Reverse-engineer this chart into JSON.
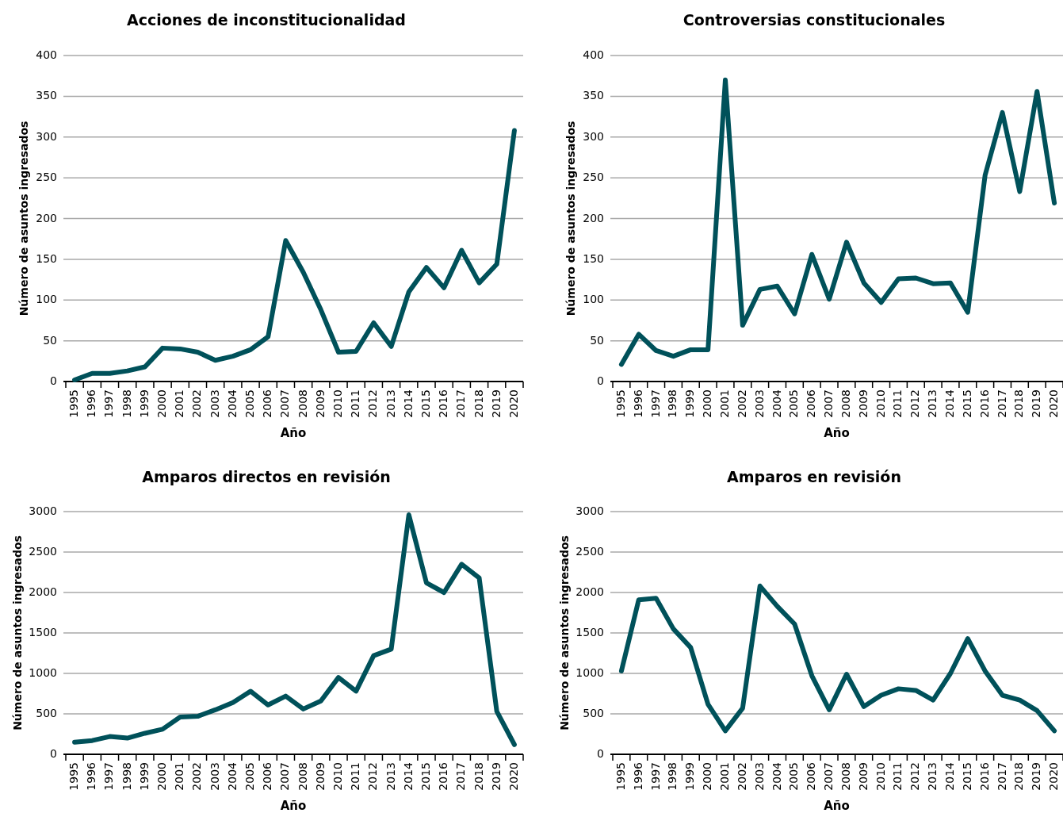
{
  "chart_data": [
    {
      "type": "line",
      "title": "Acciones de inconstitucionalidad",
      "xlabel": "Año",
      "ylabel": "Número de asuntos ingresados",
      "categories": [
        "1995",
        "1996",
        "1997",
        "1998",
        "1999",
        "2000",
        "2001",
        "2002",
        "2003",
        "2004",
        "2005",
        "2006",
        "2007",
        "2008",
        "2009",
        "2010",
        "2011",
        "2012",
        "2013",
        "2014",
        "2015",
        "2016",
        "2017",
        "2018",
        "2019",
        "2020"
      ],
      "series": [
        {
          "color": "#00515a",
          "values": [
            2,
            10,
            10,
            13,
            18,
            41,
            40,
            36,
            26,
            31,
            39,
            55,
            173,
            134,
            88,
            36,
            37,
            72,
            43,
            110,
            140,
            115,
            161,
            121,
            144,
            308
          ]
        }
      ],
      "ylim": [
        0,
        400
      ],
      "yticks": [
        0,
        50,
        100,
        150,
        200,
        250,
        300,
        350,
        400
      ],
      "grid": "y",
      "marker": "none",
      "line_style": "solid"
    },
    {
      "type": "line",
      "title": "Controversias constitucionales",
      "xlabel": "Año",
      "ylabel": "Número de asuntos ingresados",
      "categories": [
        "1995",
        "1996",
        "1997",
        "1998",
        "1999",
        "2000",
        "2001",
        "2002",
        "2003",
        "2004",
        "2005",
        "2006",
        "2007",
        "2008",
        "2009",
        "2010",
        "2011",
        "2012",
        "2013",
        "2014",
        "2015",
        "2016",
        "2017",
        "2018",
        "2019",
        "2020"
      ],
      "series": [
        {
          "color": "#00515a",
          "values": [
            21,
            58,
            38,
            31,
            39,
            39,
            370,
            69,
            113,
            117,
            83,
            156,
            101,
            171,
            121,
            97,
            126,
            127,
            120,
            121,
            85,
            253,
            330,
            233,
            356,
            219
          ]
        }
      ],
      "ylim": [
        0,
        400
      ],
      "yticks": [
        0,
        50,
        100,
        150,
        200,
        250,
        300,
        350,
        400
      ],
      "grid": "y",
      "marker": "none",
      "line_style": "solid"
    },
    {
      "type": "line",
      "title": "Amparos directos en revisión",
      "xlabel": "Año",
      "ylabel": "Número de asuntos ingresados",
      "categories": [
        "1995",
        "1996",
        "1997",
        "1998",
        "1999",
        "2000",
        "2001",
        "2002",
        "2003",
        "2004",
        "2005",
        "2006",
        "2007",
        "2008",
        "2009",
        "2010",
        "2011",
        "2012",
        "2013",
        "2014",
        "2015",
        "2016",
        "2017",
        "2018",
        "2019",
        "2020"
      ],
      "series": [
        {
          "color": "#00515a",
          "values": [
            150,
            170,
            220,
            200,
            260,
            310,
            460,
            470,
            550,
            640,
            780,
            610,
            720,
            560,
            660,
            950,
            780,
            1220,
            1300,
            2960,
            2120,
            2000,
            2350,
            2180,
            530,
            120
          ]
        }
      ],
      "ylim": [
        0,
        3000
      ],
      "yticks": [
        0,
        500,
        1000,
        1500,
        2000,
        2500,
        3000
      ],
      "grid": "y",
      "marker": "none",
      "line_style": "solid"
    },
    {
      "type": "line",
      "title": "Amparos en revisión",
      "xlabel": "Año",
      "ylabel": "Número de asuntos ingresados",
      "categories": [
        "1995",
        "1996",
        "1997",
        "1998",
        "1999",
        "2000",
        "2001",
        "2002",
        "2003",
        "2004",
        "2005",
        "2006",
        "2007",
        "2008",
        "2009",
        "2010",
        "2011",
        "2012",
        "2013",
        "2014",
        "2015",
        "2016",
        "2017",
        "2018",
        "2019",
        "2020"
      ],
      "series": [
        {
          "color": "#00515a",
          "values": [
            1030,
            1910,
            1930,
            1550,
            1320,
            620,
            290,
            570,
            2080,
            1830,
            1610,
            970,
            550,
            990,
            590,
            730,
            810,
            790,
            670,
            1000,
            1430,
            1030,
            730,
            670,
            540,
            290
          ]
        }
      ],
      "ylim": [
        0,
        3000
      ],
      "yticks": [
        0,
        500,
        1000,
        1500,
        2000,
        2500,
        3000
      ],
      "grid": "y",
      "marker": "none",
      "line_style": "solid"
    }
  ]
}
